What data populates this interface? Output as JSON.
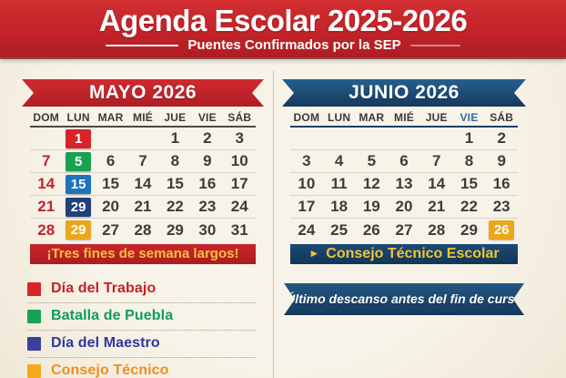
{
  "header": {
    "title": "Agenda Escolar 2025-2026",
    "subtitle": "Puentes Confirmados por la SEP"
  },
  "day_headers": [
    "DOM",
    "LUN",
    "MAR",
    "MIÉ",
    "JUE",
    "VIE",
    "SÁB"
  ],
  "may": {
    "title": "MAYO 2026",
    "banner": "¡Tres fines de semana largos!",
    "rows": [
      [
        {
          "d": ""
        },
        {
          "d": "1",
          "s": "hl-red"
        },
        {
          "d": ""
        },
        {
          "d": ""
        },
        {
          "d": "1"
        },
        {
          "d": "2"
        },
        {
          "d": "3"
        }
      ],
      [
        {
          "d": "7",
          "s": "sun"
        },
        {
          "d": "5",
          "s": "hl-green"
        },
        {
          "d": "6"
        },
        {
          "d": "7"
        },
        {
          "d": "8"
        },
        {
          "d": "9"
        },
        {
          "d": "10"
        }
      ],
      [
        {
          "d": "14",
          "s": "sun"
        },
        {
          "d": "15",
          "s": "hl-blue"
        },
        {
          "d": "15"
        },
        {
          "d": "14"
        },
        {
          "d": "15"
        },
        {
          "d": "16"
        },
        {
          "d": "17"
        }
      ],
      [
        {
          "d": "21",
          "s": "sun"
        },
        {
          "d": "29",
          "s": "hl-navy"
        },
        {
          "d": "20"
        },
        {
          "d": "21"
        },
        {
          "d": "22"
        },
        {
          "d": "23"
        },
        {
          "d": "24"
        }
      ],
      [
        {
          "d": "28",
          "s": "sun"
        },
        {
          "d": "29",
          "s": "hl-amber"
        },
        {
          "d": "27"
        },
        {
          "d": "28"
        },
        {
          "d": "29"
        },
        {
          "d": "30"
        },
        {
          "d": "31"
        }
      ]
    ]
  },
  "june": {
    "title": "JUNIO 2026",
    "highlight_day": "VIE",
    "banner_arrow": "►",
    "banner": "Consejo Técnico Escolar",
    "note": "Último descanso antes del fin de curso",
    "rows": [
      [
        {
          "d": ""
        },
        {
          "d": ""
        },
        {
          "d": ""
        },
        {
          "d": ""
        },
        {
          "d": ""
        },
        {
          "d": "1"
        },
        {
          "d": "2"
        }
      ],
      [
        {
          "d": "3"
        },
        {
          "d": "4"
        },
        {
          "d": "5"
        },
        {
          "d": "6"
        },
        {
          "d": "7"
        },
        {
          "d": "8"
        },
        {
          "d": "9"
        }
      ],
      [
        {
          "d": "10"
        },
        {
          "d": "11"
        },
        {
          "d": "12"
        },
        {
          "d": "13"
        },
        {
          "d": "14"
        },
        {
          "d": "15"
        },
        {
          "d": "16"
        }
      ],
      [
        {
          "d": "17"
        },
        {
          "d": "18"
        },
        {
          "d": "19"
        },
        {
          "d": "20"
        },
        {
          "d": "21"
        },
        {
          "d": "22"
        },
        {
          "d": "23"
        }
      ],
      [
        {
          "d": "24"
        },
        {
          "d": "25"
        },
        {
          "d": "26"
        },
        {
          "d": "27"
        },
        {
          "d": "28"
        },
        {
          "d": "29"
        },
        {
          "d": "26",
          "s": "hl-amber"
        }
      ]
    ]
  },
  "legend": [
    {
      "label": "Día del Trabajo",
      "swatch": "#d8232a",
      "text": "#c2222a"
    },
    {
      "label": "Batalla de Puebla",
      "swatch": "#18a153",
      "text": "#0b9e58"
    },
    {
      "label": "Día del Maestro",
      "swatch": "#3a3f9e",
      "text": "#30379b"
    },
    {
      "label": "Consejo Técnico",
      "swatch": "#f6a81a",
      "text": "#ef8e1f"
    }
  ],
  "colors": {
    "background": "#f6f1e5",
    "banner_red": "#c3242b",
    "june_blue": "#1d5181",
    "june_banner_navy": "#16406b",
    "sunday_red": "#c3242b",
    "hl_red": "#d8232a",
    "hl_green": "#18a153",
    "hl_blue": "#1e73b9",
    "hl_navy": "#20407a",
    "hl_amber": "#eaa71e",
    "banner_text_yellow": "#f5c33a"
  }
}
